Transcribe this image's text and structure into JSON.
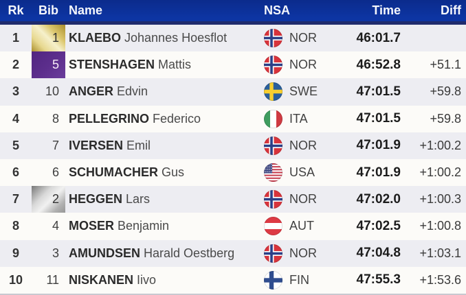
{
  "table": {
    "columns": [
      {
        "key": "rk",
        "label": "Rk"
      },
      {
        "key": "bib",
        "label": "Bib"
      },
      {
        "key": "name",
        "label": "Name"
      },
      {
        "key": "nsa",
        "label": "NSA"
      },
      {
        "key": "time",
        "label": "Time"
      },
      {
        "key": "diff",
        "label": "Diff"
      }
    ],
    "rows": [
      {
        "rk": "1",
        "bib": "1",
        "bib_style": "gold",
        "last_name": "KLAEBO",
        "first_name": "Johannes Hoesflot",
        "nsa": "NOR",
        "time": "46:01.7",
        "diff": ""
      },
      {
        "rk": "2",
        "bib": "5",
        "bib_style": "purple",
        "last_name": "STENSHAGEN",
        "first_name": "Mattis",
        "nsa": "NOR",
        "time": "46:52.8",
        "diff": "+51.1"
      },
      {
        "rk": "3",
        "bib": "10",
        "bib_style": "",
        "last_name": "ANGER",
        "first_name": "Edvin",
        "nsa": "SWE",
        "time": "47:01.5",
        "diff": "+59.8"
      },
      {
        "rk": "4",
        "bib": "8",
        "bib_style": "",
        "last_name": "PELLEGRINO",
        "first_name": "Federico",
        "nsa": "ITA",
        "time": "47:01.5",
        "diff": "+59.8"
      },
      {
        "rk": "5",
        "bib": "7",
        "bib_style": "",
        "last_name": "IVERSEN",
        "first_name": "Emil",
        "nsa": "NOR",
        "time": "47:01.9",
        "diff": "+1:00.2"
      },
      {
        "rk": "6",
        "bib": "6",
        "bib_style": "",
        "last_name": "SCHUMACHER",
        "first_name": "Gus",
        "nsa": "USA",
        "time": "47:01.9",
        "diff": "+1:00.2"
      },
      {
        "rk": "7",
        "bib": "2",
        "bib_style": "silver",
        "last_name": "HEGGEN",
        "first_name": "Lars",
        "nsa": "NOR",
        "time": "47:02.0",
        "diff": "+1:00.3"
      },
      {
        "rk": "8",
        "bib": "4",
        "bib_style": "",
        "last_name": "MOSER",
        "first_name": "Benjamin",
        "nsa": "AUT",
        "time": "47:02.5",
        "diff": "+1:00.8"
      },
      {
        "rk": "9",
        "bib": "3",
        "bib_style": "",
        "last_name": "AMUNDSEN",
        "first_name": "Harald Oestberg",
        "nsa": "NOR",
        "time": "47:04.8",
        "diff": "+1:03.1"
      },
      {
        "rk": "10",
        "bib": "11",
        "bib_style": "",
        "last_name": "NISKANEN",
        "first_name": "Iivo",
        "nsa": "FIN",
        "time": "47:55.3",
        "diff": "+1:53.6"
      }
    ]
  },
  "colors": {
    "header_bg_top": "#0b2b8c",
    "header_bg_bottom": "#0d35a3",
    "header_border": "#1f2b6d",
    "header_text": "#f5f7fc",
    "row_odd": "#ededf2",
    "row_even": "#fcfbf8",
    "bib_gold": "#d8bd5e",
    "bib_purple": "#5d2f8d",
    "bib_silver": "#c0c0c0",
    "time_text": "#1c1c1c",
    "diff_text": "#3a3a3a"
  },
  "flags": {
    "NOR": {
      "kind": "cross",
      "bg": "#d8343c",
      "cross": "#ffffff",
      "arm": 7,
      "inner": "#2b3f87",
      "inner_arm": 3.6
    },
    "SWE": {
      "kind": "cross",
      "bg": "#2a5f9c",
      "cross": "#f8cf2f",
      "arm": 5.5
    },
    "FIN": {
      "kind": "cross",
      "bg": "#ffffff",
      "cross": "#2f4d8f",
      "arm": 6.4
    },
    "ITA": {
      "kind": "vbands",
      "colors": [
        "#3f9c5f",
        "#ffffff",
        "#cf3a42"
      ]
    },
    "AUT": {
      "kind": "hbands",
      "colors": [
        "#dd3a44",
        "#ffffff",
        "#dd3a44"
      ]
    },
    "USA": {
      "kind": "usa",
      "stripe": "#c6394a",
      "white": "#ffffff",
      "canton": "#414a84"
    }
  }
}
